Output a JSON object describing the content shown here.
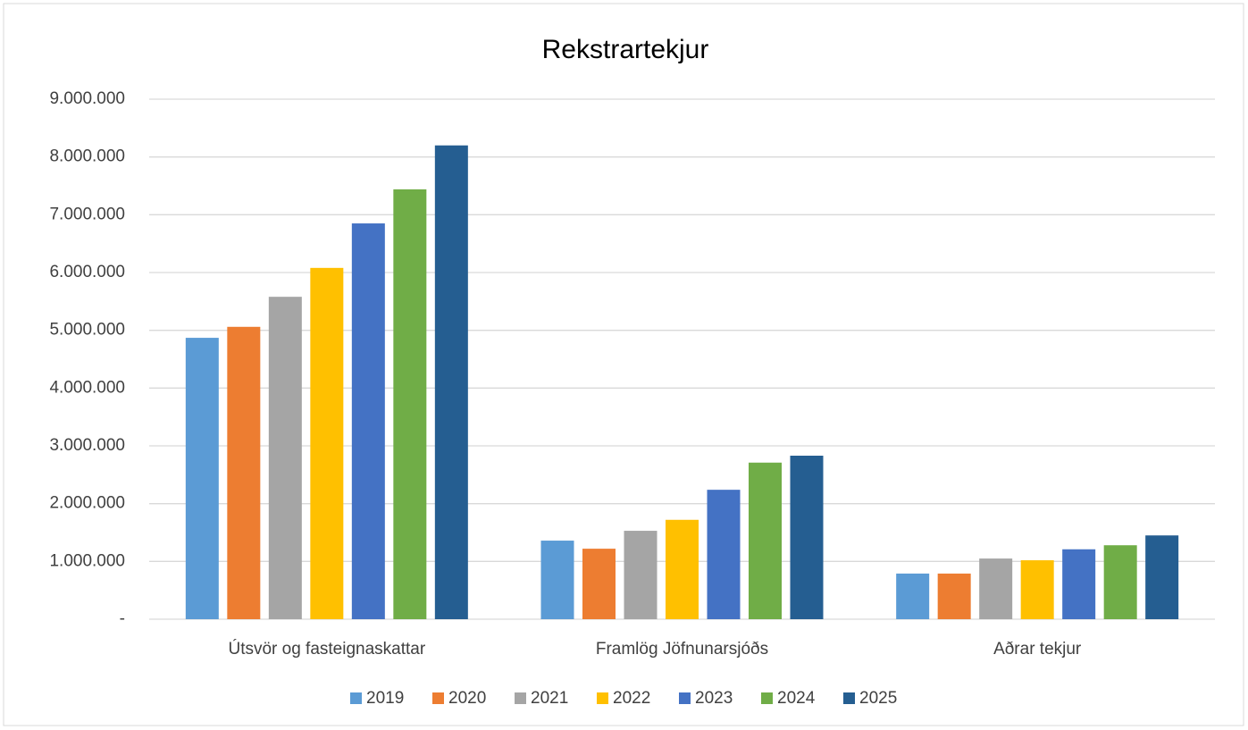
{
  "chart_data": {
    "type": "bar",
    "title": "Rekstrartekjur",
    "categories": [
      "Útsvör og fasteignaskattar",
      "Framlög Jöfnunarsjóðs",
      "Aðrar tekjur"
    ],
    "series": [
      {
        "name": "2019",
        "color": "#5b9bd5",
        "values": [
          4870000,
          1360000,
          790000
        ]
      },
      {
        "name": "2020",
        "color": "#ed7d31",
        "values": [
          5060000,
          1220000,
          790000
        ]
      },
      {
        "name": "2021",
        "color": "#a5a5a5",
        "values": [
          5580000,
          1530000,
          1050000
        ]
      },
      {
        "name": "2022",
        "color": "#ffc000",
        "values": [
          6080000,
          1720000,
          1020000
        ]
      },
      {
        "name": "2023",
        "color": "#4472c4",
        "values": [
          6850000,
          2240000,
          1210000
        ]
      },
      {
        "name": "2024",
        "color": "#70ad47",
        "values": [
          7440000,
          2710000,
          1280000
        ]
      },
      {
        "name": "2025",
        "color": "#255e91",
        "values": [
          8200000,
          2830000,
          1450000
        ]
      }
    ],
    "ylim": [
      0,
      9000000
    ],
    "yticks": [
      {
        "value": 0,
        "label": "-"
      },
      {
        "value": 1000000,
        "label": "1.000.000"
      },
      {
        "value": 2000000,
        "label": "2.000.000"
      },
      {
        "value": 3000000,
        "label": "3.000.000"
      },
      {
        "value": 4000000,
        "label": "4.000.000"
      },
      {
        "value": 5000000,
        "label": "5.000.000"
      },
      {
        "value": 6000000,
        "label": "6.000.000"
      },
      {
        "value": 7000000,
        "label": "7.000.000"
      },
      {
        "value": 8000000,
        "label": "8.000.000"
      },
      {
        "value": 9000000,
        "label": "9.000.000"
      }
    ],
    "grid": true,
    "legend": "bottom"
  }
}
